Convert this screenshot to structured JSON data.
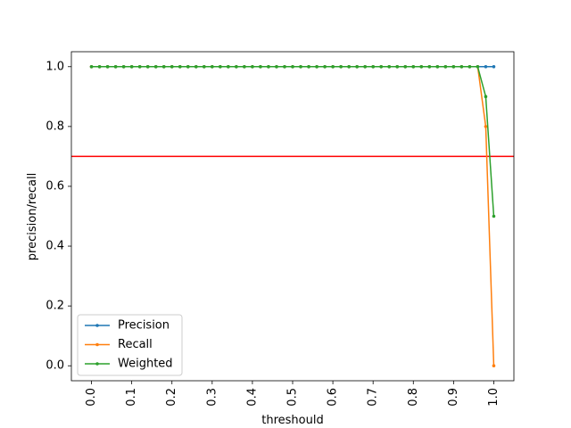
{
  "chart_data": {
    "type": "line",
    "xlabel": "threshould",
    "ylabel": "precision/recall",
    "xlim": [
      -0.05,
      1.05
    ],
    "ylim": [
      -0.05,
      1.05
    ],
    "x_ticks": [
      0.0,
      0.1,
      0.2,
      0.3,
      0.4,
      0.5,
      0.6,
      0.7,
      0.8,
      0.9,
      1.0
    ],
    "x_tick_labels": [
      "0.0",
      "0.1",
      "0.2",
      "0.3",
      "0.4",
      "0.5",
      "0.6",
      "0.7",
      "0.8",
      "0.9",
      "1.0"
    ],
    "y_ticks": [
      0.0,
      0.2,
      0.4,
      0.6,
      0.8,
      1.0
    ],
    "y_tick_labels": [
      "0.0",
      "0.2",
      "0.4",
      "0.6",
      "0.8",
      "1.0"
    ],
    "x": [
      0.0,
      0.02,
      0.04,
      0.06,
      0.08,
      0.1,
      0.12,
      0.14,
      0.16,
      0.18,
      0.2,
      0.22,
      0.24,
      0.26,
      0.28,
      0.3,
      0.32,
      0.34,
      0.36,
      0.38,
      0.4,
      0.42,
      0.44,
      0.46,
      0.48,
      0.5,
      0.52,
      0.54,
      0.56,
      0.58,
      0.6,
      0.62,
      0.64,
      0.66,
      0.68,
      0.7,
      0.72,
      0.74,
      0.76,
      0.78,
      0.8,
      0.82,
      0.84,
      0.86,
      0.88,
      0.9,
      0.92,
      0.94,
      0.96,
      0.98,
      1.0
    ],
    "series": [
      {
        "name": "Precision",
        "color": "#1f77b4",
        "values": [
          1,
          1,
          1,
          1,
          1,
          1,
          1,
          1,
          1,
          1,
          1,
          1,
          1,
          1,
          1,
          1,
          1,
          1,
          1,
          1,
          1,
          1,
          1,
          1,
          1,
          1,
          1,
          1,
          1,
          1,
          1,
          1,
          1,
          1,
          1,
          1,
          1,
          1,
          1,
          1,
          1,
          1,
          1,
          1,
          1,
          1,
          1,
          1,
          1,
          1,
          1
        ]
      },
      {
        "name": "Recall",
        "color": "#ff7f0e",
        "values": [
          1,
          1,
          1,
          1,
          1,
          1,
          1,
          1,
          1,
          1,
          1,
          1,
          1,
          1,
          1,
          1,
          1,
          1,
          1,
          1,
          1,
          1,
          1,
          1,
          1,
          1,
          1,
          1,
          1,
          1,
          1,
          1,
          1,
          1,
          1,
          1,
          1,
          1,
          1,
          1,
          1,
          1,
          1,
          1,
          1,
          1,
          1,
          1,
          1,
          0.8,
          0.0
        ]
      },
      {
        "name": "Weighted",
        "color": "#2ca02c",
        "values": [
          1,
          1,
          1,
          1,
          1,
          1,
          1,
          1,
          1,
          1,
          1,
          1,
          1,
          1,
          1,
          1,
          1,
          1,
          1,
          1,
          1,
          1,
          1,
          1,
          1,
          1,
          1,
          1,
          1,
          1,
          1,
          1,
          1,
          1,
          1,
          1,
          1,
          1,
          1,
          1,
          1,
          1,
          1,
          1,
          1,
          1,
          1,
          1,
          1,
          0.9,
          0.5
        ]
      }
    ],
    "hline": {
      "y": 0.7,
      "color": "#ff0000"
    },
    "legend": {
      "placement": "lower-left"
    },
    "grid": false
  }
}
